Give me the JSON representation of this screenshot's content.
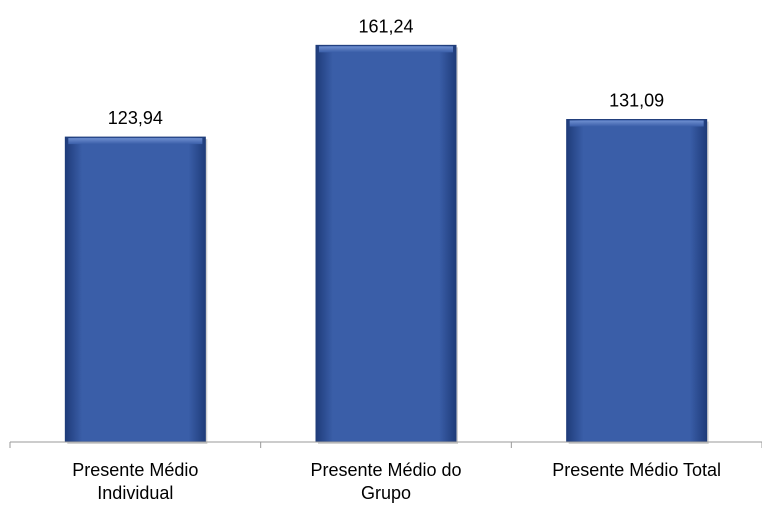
{
  "chart_data": {
    "type": "bar",
    "categories": [
      [
        "Presente Médio",
        "Individual"
      ],
      [
        "Presente Médio do",
        "Grupo"
      ],
      [
        "Presente Médio Total"
      ]
    ],
    "values": [
      123.94,
      161.24,
      131.09
    ],
    "data_labels": [
      "123,94",
      "161,24",
      "131,09"
    ],
    "title": "",
    "xlabel": "",
    "ylabel": "",
    "ylim": [
      0,
      180
    ],
    "grid": false,
    "legend": "none",
    "colors": {
      "bar_fill": "#3a5ea8",
      "bar_edge": "#1f3c7a",
      "bar_highlight": "#6f8fd0",
      "axis": "#9a9a9a"
    }
  }
}
